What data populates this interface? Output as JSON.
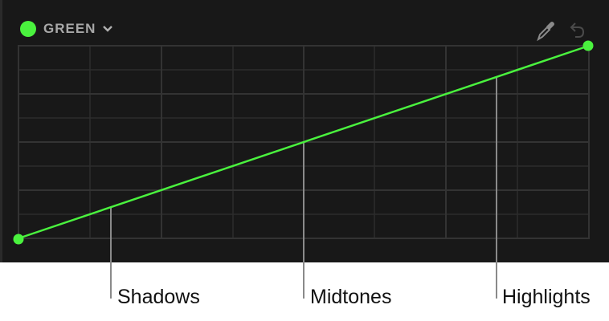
{
  "channel": {
    "label": "GREEN",
    "color": "#4af23e"
  },
  "icons": {
    "eyedropper": "eyedropper-icon",
    "reset": "undo-icon",
    "dropdown": "chevron-down-icon"
  },
  "callouts": {
    "shadows": "Shadows",
    "midtones": "Midtones",
    "highlights": "Highlights"
  }
}
